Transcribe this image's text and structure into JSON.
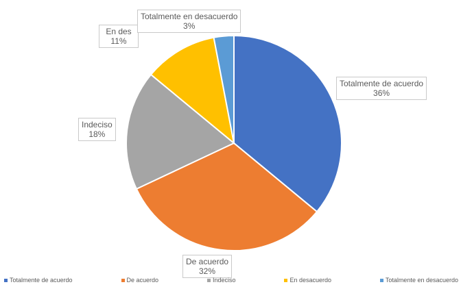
{
  "chart_data": {
    "type": "pie",
    "title": "",
    "categories": [
      "Totalmente de acuerdo",
      "De acuerdo",
      "Indeciso",
      "En desacuerdo",
      "Totalmente en desacuerdo"
    ],
    "values": [
      36,
      32,
      18,
      11,
      3
    ],
    "data_labels": [
      "36%",
      "32%",
      "18%",
      "11%",
      "3%"
    ],
    "colors": [
      "#4472c4",
      "#ed7d31",
      "#a5a5a5",
      "#ffc000",
      "#5b9bd5"
    ],
    "legend_position": "bottom",
    "start_angle": "top, clockwise"
  },
  "labels": [
    {
      "name": "Totalmente de acuerdo",
      "pct": "36%"
    },
    {
      "name": "De acuerdo",
      "pct": "32%"
    },
    {
      "name": "Indeciso",
      "pct": "18%"
    },
    {
      "name": "En des",
      "pct": "11%"
    },
    {
      "name": "Totalmente en desacuerdo",
      "pct": "3%"
    }
  ],
  "legend": [
    "Totalmente de acuerdo",
    "De acuerdo",
    "Indeciso",
    "En desacuerdo",
    "Totalmente en desacuerdo"
  ]
}
